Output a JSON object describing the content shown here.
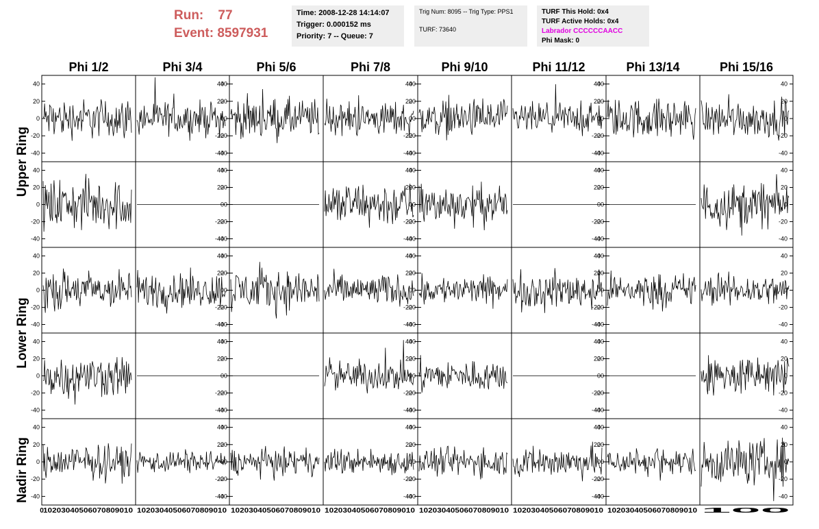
{
  "header": {
    "run_label": "Run:",
    "run_value": "77",
    "event_label": "Event:",
    "event_value": "8597931",
    "time": "Time: 2008-12-28 14:14:07",
    "trigger": "Trigger: 0.000152 ms",
    "priority": "Priority: 7 -- Queue: 7",
    "trig_num": "Trig Num: 8095 -- Trig Type: PPS1",
    "turf": "TURF: 73640",
    "turf_this_hold": "TURF This Hold: 0x4",
    "turf_active_holds": "TURF Active Holds: 0x4",
    "labrador": "Labrador CCCCCCAACC",
    "phi_mask": "Phi Mask: 0"
  },
  "colors": {
    "run_text": "#cd5c5c",
    "labrador_text": "#e000e0",
    "info_bg": "#eeeeee"
  },
  "chart_data": {
    "type": "line",
    "description_grid": "5 rows x 8 columns of waveform panels",
    "columns": [
      "Phi 1/2",
      "Phi 3/4",
      "Phi 5/6",
      "Phi 7/8",
      "Phi 9/10",
      "Phi 11/12",
      "Phi 13/14",
      "Phi 15/16"
    ],
    "ring_labels": [
      "Upper Ring",
      "Lower Ring",
      "Nadir Ring"
    ],
    "xlim": [
      0,
      100
    ],
    "ylim": [
      -50,
      50
    ],
    "y_ticks": [
      -40,
      -20,
      0,
      20,
      40
    ],
    "x_tick_labels": [
      "0",
      "10",
      "20",
      "30",
      "40",
      "50",
      "60",
      "70",
      "80",
      "90",
      "100"
    ],
    "x_axis_strip": [
      "0",
      "10203040506070809010",
      "10203040506070809010",
      "10203040506070809010",
      "10203040506070809010",
      "10203040506070809010",
      "10203040506070809010",
      "10203040506070809010",
      "100"
    ],
    "flat_panels": [
      [
        1,
        1
      ],
      [
        1,
        2
      ],
      [
        1,
        5
      ],
      [
        1,
        6
      ],
      [
        3,
        1
      ],
      [
        3,
        2
      ],
      [
        3,
        5
      ],
      [
        3,
        6
      ]
    ],
    "noise_amplitude": [
      [
        14,
        12,
        14,
        12,
        13,
        11,
        14,
        13
      ],
      [
        18,
        0,
        0,
        16,
        14,
        0,
        0,
        16
      ],
      [
        14,
        13,
        15,
        11,
        10,
        13,
        12,
        11
      ],
      [
        15,
        0,
        0,
        11,
        11,
        0,
        0,
        14
      ],
      [
        12,
        8,
        9,
        9,
        10,
        11,
        10,
        16
      ]
    ]
  }
}
